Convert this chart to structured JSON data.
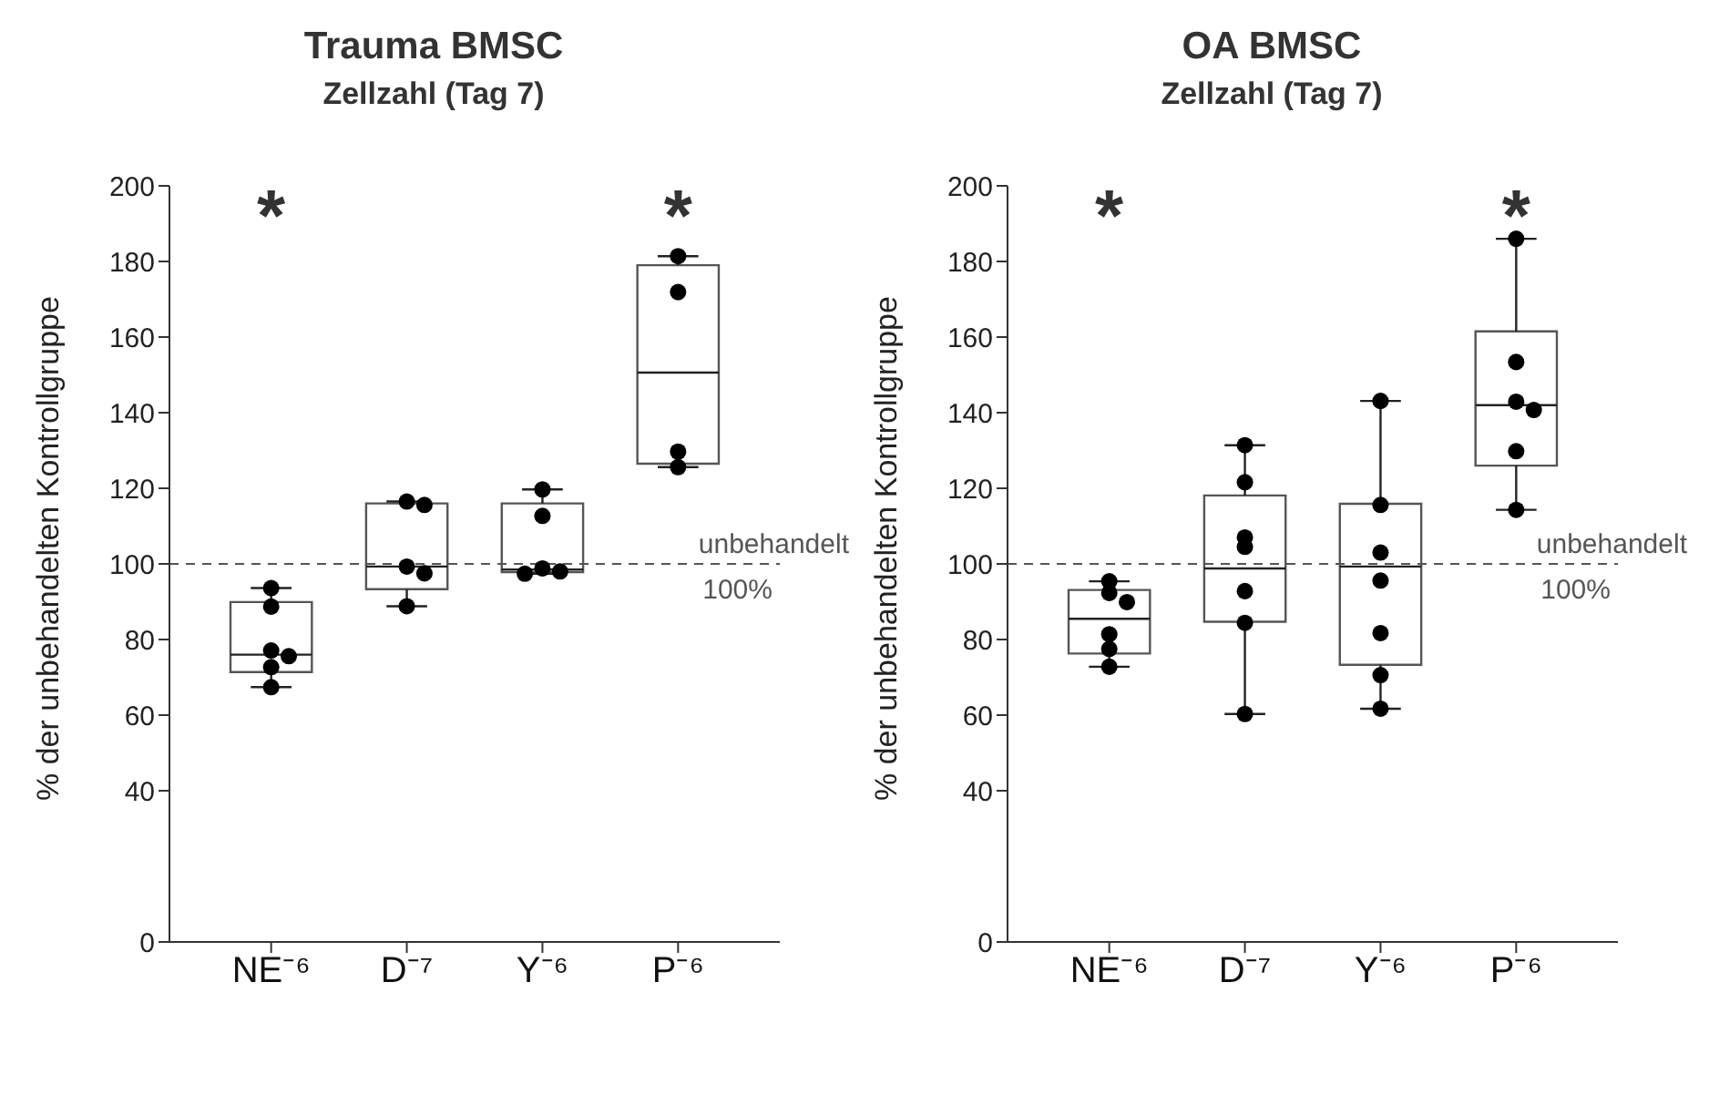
{
  "chart_data": [
    {
      "type": "box",
      "title": "Trauma BMSC",
      "subtitle": "Zellzahl (Tag 7)",
      "ylabel": "% der unbehandelten Kontrollgruppe",
      "categories": [
        "NE⁻⁶",
        "D⁻⁷",
        "Y⁻⁶",
        "P⁻⁶"
      ],
      "ylim": [
        0,
        200
      ],
      "yticks": [
        0,
        40,
        60,
        80,
        100,
        120,
        140,
        160,
        180,
        200
      ],
      "grid": false,
      "boxes": [
        {
          "low": 67.4,
          "q1": 71.4,
          "median": 76,
          "q3": 89.9,
          "high": 93.6
        },
        {
          "low": 88.8,
          "q1": 93.3,
          "median": 99.3,
          "q3": 116,
          "high": 116.5
        },
        {
          "low": 97.4,
          "q1": 97.8,
          "median": 98.5,
          "q3": 116,
          "high": 119.7
        },
        {
          "low": 125.6,
          "q1": 126.5,
          "median": 150.6,
          "q3": 179,
          "high": 181.4
        }
      ],
      "series": [
        {
          "type": "scatter",
          "color": "#000000",
          "x": [
            "NE⁻⁶",
            "NE⁻⁶",
            "NE⁻⁶",
            "NE⁻⁶",
            "NE⁻⁶",
            "NE⁻⁶",
            "D⁻⁷",
            "D⁻⁷",
            "D⁻⁷",
            "D⁻⁷",
            "D⁻⁷",
            "Y⁻⁶",
            "Y⁻⁶",
            "Y⁻⁶",
            "Y⁻⁶",
            "Y⁻⁶",
            "P⁻⁶",
            "P⁻⁶",
            "P⁻⁶",
            "P⁻⁶"
          ],
          "values": [
            93.6,
            88.7,
            77.1,
            75.6,
            72.7,
            67.4,
            116.5,
            115.6,
            99.3,
            97.5,
            88.8,
            119.7,
            112.7,
            98.8,
            98,
            97.4,
            181.4,
            171.9,
            129.7,
            125.6
          ]
        }
      ],
      "ref_lines": [
        {
          "axis": "y",
          "value": 100,
          "label": "unbehandelt",
          "line_style": "dashed",
          "color": "#555555"
        }
      ],
      "annotations": [
        {
          "text": "100%",
          "y": 100
        },
        "*",
        "*"
      ],
      "marker": "circle",
      "legend": false
    },
    {
      "type": "box",
      "title": "OA BMSC",
      "subtitle": "Zellzahl (Tag 7)",
      "ylabel": "% der unbehandelten Kontrollgruppe",
      "categories": [
        "NE⁻⁶",
        "D⁻⁷",
        "Y⁻⁶",
        "P⁻⁶"
      ],
      "ylim": [
        0,
        200
      ],
      "yticks": [
        0,
        40,
        60,
        80,
        100,
        120,
        140,
        160,
        180,
        200
      ],
      "grid": false,
      "boxes": [
        {
          "low": 72.8,
          "q1": 76.3,
          "median": 85.5,
          "q3": 93.1,
          "high": 95.4
        },
        {
          "low": 60.3,
          "q1": 84.7,
          "median": 98.8,
          "q3": 118.1,
          "high": 131.4
        },
        {
          "low": 61.7,
          "q1": 73.3,
          "median": 99.3,
          "q3": 115.9,
          "high": 143.1
        },
        {
          "low": 114.3,
          "q1": 126,
          "median": 142,
          "q3": 161.5,
          "high": 186
        }
      ],
      "series": [
        {
          "type": "scatter",
          "color": "#000000",
          "x": [
            "NE⁻⁶",
            "NE⁻⁶",
            "NE⁻⁶",
            "NE⁻⁶",
            "NE⁻⁶",
            "NE⁻⁶",
            "D⁻⁷",
            "D⁻⁷",
            "D⁻⁷",
            "D⁻⁷",
            "D⁻⁷",
            "D⁻⁷",
            "D⁻⁷",
            "Y⁻⁶",
            "Y⁻⁶",
            "Y⁻⁶",
            "Y⁻⁶",
            "Y⁻⁶",
            "Y⁻⁶",
            "Y⁻⁶",
            "P⁻⁶",
            "P⁻⁶",
            "P⁻⁶",
            "P⁻⁶",
            "P⁻⁶",
            "P⁻⁶"
          ],
          "values": [
            95.4,
            92.3,
            89.9,
            81.4,
            77.5,
            72.8,
            131.4,
            121.6,
            107,
            104.5,
            92.8,
            84.4,
            60.3,
            143.1,
            115.6,
            103,
            95.6,
            81.7,
            70.6,
            61.7,
            186,
            153.4,
            142.9,
            140.7,
            129.8,
            114.3
          ]
        }
      ],
      "ref_lines": [
        {
          "axis": "y",
          "value": 100,
          "label": "unbehandelt",
          "line_style": "dashed",
          "color": "#555555"
        }
      ],
      "annotations": [
        {
          "text": "100%",
          "y": 100
        },
        "*",
        "*"
      ],
      "marker": "circle",
      "legend": false
    }
  ]
}
